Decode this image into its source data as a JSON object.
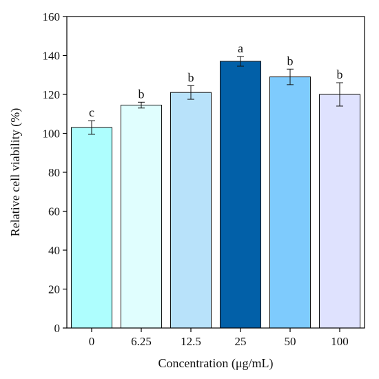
{
  "chart_data": {
    "type": "bar",
    "title": "",
    "xlabel": "Concentration (μg/mL)",
    "ylabel": "Relative cell viability (%)",
    "ylim": [
      0,
      160
    ],
    "yticks": [
      0,
      20,
      40,
      60,
      80,
      100,
      120,
      140,
      160
    ],
    "grid": false,
    "legend": "none",
    "categories": [
      "0",
      "6.25",
      "12.5",
      "25",
      "50",
      "100"
    ],
    "values": [
      103,
      114.5,
      121,
      137,
      129,
      120
    ],
    "errors": [
      3.5,
      1.5,
      3.5,
      2.5,
      4,
      6
    ],
    "significance": [
      "c",
      "b",
      "b",
      "a",
      "b",
      "b"
    ],
    "colors": [
      "#aefefe",
      "#e0fefe",
      "#b8e2fa",
      "#0260a8",
      "#7ecbfd",
      "#dfe2fe"
    ]
  }
}
